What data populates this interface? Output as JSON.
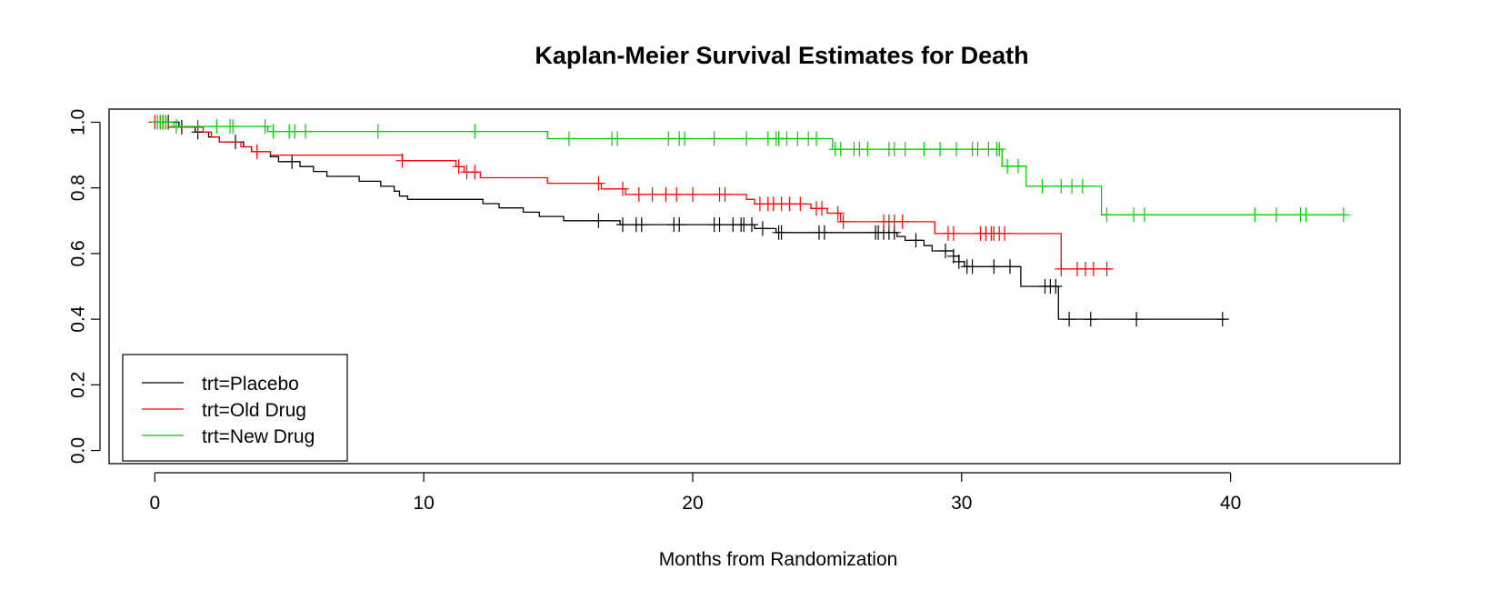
{
  "chart_data": {
    "type": "line",
    "subtype": "kaplan-meier step",
    "title": "Kaplan-Meier Survival Estimates for Death",
    "xlabel": "Months from Randomization",
    "ylabel": "",
    "xlim": [
      -1.7,
      46.3
    ],
    "ylim": [
      -0.04,
      1.04
    ],
    "xticks": [
      0,
      10,
      20,
      30,
      40
    ],
    "yticks": [
      0.0,
      0.2,
      0.4,
      0.6,
      0.8,
      1.0
    ],
    "xtick_labels": [
      "0",
      "10",
      "20",
      "30",
      "40"
    ],
    "ytick_labels": [
      "0.0",
      "0.2",
      "0.4",
      "0.6",
      "0.8",
      "1.0"
    ],
    "grid": false,
    "legend_position": "bottom-left",
    "series": [
      {
        "name": "trt=Placebo",
        "color": "#000000",
        "steps": [
          [
            0,
            1.0
          ],
          [
            0.9,
            0.985
          ],
          [
            1.5,
            0.97
          ],
          [
            2.0,
            0.955
          ],
          [
            2.4,
            0.94
          ],
          [
            3.3,
            0.925
          ],
          [
            3.6,
            0.91
          ],
          [
            4.3,
            0.895
          ],
          [
            4.6,
            0.88
          ],
          [
            5.4,
            0.865
          ],
          [
            5.9,
            0.85
          ],
          [
            6.4,
            0.835
          ],
          [
            7.6,
            0.82
          ],
          [
            8.4,
            0.805
          ],
          [
            8.9,
            0.79
          ],
          [
            9.1,
            0.775
          ],
          [
            9.4,
            0.765
          ],
          [
            12.2,
            0.752
          ],
          [
            12.8,
            0.739
          ],
          [
            13.7,
            0.726
          ],
          [
            14.3,
            0.713
          ],
          [
            15.2,
            0.7
          ],
          [
            17.3,
            0.688
          ],
          [
            22.3,
            0.676
          ],
          [
            23.1,
            0.664
          ],
          [
            27.6,
            0.652
          ],
          [
            27.9,
            0.64
          ],
          [
            28.6,
            0.624
          ],
          [
            28.9,
            0.608
          ],
          [
            29.7,
            0.592
          ],
          [
            29.9,
            0.575
          ],
          [
            30.1,
            0.56
          ],
          [
            32.2,
            0.5
          ],
          [
            33.6,
            0.4
          ],
          [
            39.8,
            0.4
          ]
        ],
        "censors": [
          0.3,
          0.5,
          1.0,
          1.6,
          3.0,
          5.1,
          16.5,
          17.4,
          17.9,
          18.1,
          19.3,
          19.5,
          20.8,
          21.0,
          21.5,
          21.8,
          21.9,
          22.2,
          22.6,
          23.2,
          23.3,
          24.7,
          24.9,
          26.8,
          26.9,
          27.1,
          27.3,
          27.5,
          28.3,
          29.4,
          29.7,
          29.9,
          30.2,
          30.4,
          31.2,
          31.8,
          33.1,
          33.3,
          33.5,
          34.0,
          34.8,
          36.5,
          39.7
        ]
      },
      {
        "name": "trt=Old Drug",
        "color": "#ff0000",
        "steps": [
          [
            0,
            1.0
          ],
          [
            0.5,
            0.985
          ],
          [
            1.8,
            0.97
          ],
          [
            2.1,
            0.955
          ],
          [
            2.4,
            0.94
          ],
          [
            3.2,
            0.925
          ],
          [
            3.6,
            0.91
          ],
          [
            4.3,
            0.9
          ],
          [
            9.2,
            0.883
          ],
          [
            11.2,
            0.865
          ],
          [
            11.5,
            0.848
          ],
          [
            12.1,
            0.831
          ],
          [
            14.6,
            0.814
          ],
          [
            16.6,
            0.797
          ],
          [
            17.5,
            0.78
          ],
          [
            22.0,
            0.765
          ],
          [
            22.3,
            0.751
          ],
          [
            24.4,
            0.737
          ],
          [
            25.0,
            0.723
          ],
          [
            25.5,
            0.697
          ],
          [
            27.0,
            0.697
          ],
          [
            29.0,
            0.661
          ],
          [
            33.6,
            0.661
          ],
          [
            33.7,
            0.553
          ],
          [
            35.6,
            0.553
          ]
        ],
        "censors": [
          0.0,
          0.2,
          0.4,
          1.6,
          3.8,
          9.2,
          11.3,
          11.6,
          11.9,
          16.5,
          17.4,
          18.0,
          18.5,
          19.0,
          19.4,
          20.0,
          21.0,
          21.2,
          22.5,
          22.8,
          23.0,
          23.3,
          23.6,
          24.0,
          24.6,
          24.8,
          25.4,
          25.6,
          27.1,
          27.3,
          27.5,
          27.8,
          29.5,
          29.7,
          30.7,
          30.9,
          31.1,
          31.2,
          31.4,
          31.6,
          33.7,
          34.3,
          34.6,
          34.9,
          35.4
        ]
      },
      {
        "name": "trt=New Drug",
        "color": "#00cd00",
        "steps": [
          [
            0,
            1.0
          ],
          [
            0.7,
            0.987
          ],
          [
            4.2,
            0.972
          ],
          [
            14.6,
            0.95
          ],
          [
            25.2,
            0.918
          ],
          [
            31.5,
            0.866
          ],
          [
            32.4,
            0.805
          ],
          [
            35.2,
            0.718
          ],
          [
            44.3,
            0.718
          ]
        ],
        "censors": [
          0.1,
          0.2,
          0.3,
          0.4,
          0.8,
          2.3,
          2.8,
          2.9,
          4.1,
          4.4,
          5.0,
          5.2,
          5.6,
          8.3,
          11.9,
          15.4,
          17.0,
          17.2,
          19.1,
          19.5,
          19.7,
          20.8,
          22.0,
          22.8,
          23.1,
          23.2,
          23.5,
          23.9,
          24.3,
          24.6,
          25.3,
          25.5,
          26.0,
          26.2,
          26.5,
          27.3,
          27.5,
          27.9,
          28.6,
          29.2,
          29.8,
          30.4,
          30.6,
          31.0,
          31.3,
          31.4,
          31.7,
          32.1,
          33.0,
          33.7,
          34.1,
          34.5,
          35.4,
          36.4,
          36.8,
          40.9,
          41.7,
          42.6,
          42.8,
          44.2
        ]
      }
    ]
  }
}
